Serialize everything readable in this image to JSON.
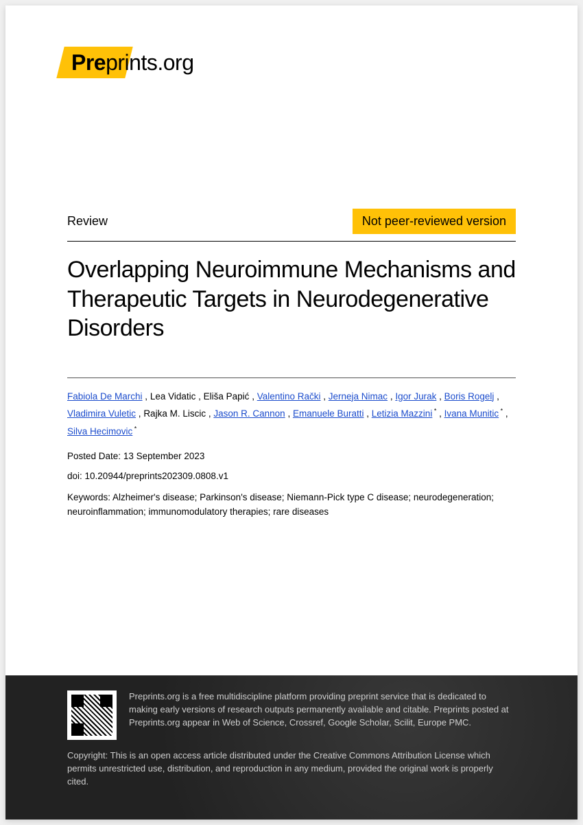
{
  "logo": {
    "pre": "Pre",
    "suffix": "prints.org"
  },
  "header": {
    "doc_type": "Review",
    "badge": "Not peer-reviewed version"
  },
  "title": "Overlapping Neuroimmune Mechanisms and Therapeutic Targets in Neurodegenerative Disorders",
  "authors": [
    {
      "name": "Fabiola De Marchi",
      "link": true,
      "star": false
    },
    {
      "name": "Lea Vidatic",
      "link": false,
      "star": false
    },
    {
      "name": "Eliša Papić",
      "link": false,
      "star": false
    },
    {
      "name": "Valentino Rački",
      "link": true,
      "star": false
    },
    {
      "name": "Jerneja Nimac",
      "link": true,
      "star": false
    },
    {
      "name": "Igor Jurak",
      "link": true,
      "star": false
    },
    {
      "name": "Boris Rogelj",
      "link": true,
      "star": false
    },
    {
      "name": "Vladimira Vuletic",
      "link": true,
      "star": false
    },
    {
      "name": "Rajka M. Liscic",
      "link": false,
      "star": false
    },
    {
      "name": "Jason R. Cannon",
      "link": true,
      "star": false
    },
    {
      "name": "Emanuele Buratti",
      "link": true,
      "star": false
    },
    {
      "name": "Letizia Mazzini",
      "link": true,
      "star": true
    },
    {
      "name": "Ivana Munitic",
      "link": true,
      "star": true
    },
    {
      "name": "Silva Hecimovic",
      "link": true,
      "star": true
    }
  ],
  "posted_label": "Posted Date: ",
  "posted_date": "13 September 2023",
  "doi_label": "doi: ",
  "doi": "10.20944/preprints202309.0808.v1",
  "keywords_label": "Keywords: ",
  "keywords": "Alzheimer's disease; Parkinson's disease; Niemann-Pick type C disease; neurodegeneration; neuroinflammation; immunomodulatory therapies; rare diseases",
  "footer": {
    "description": "Preprints.org is a free multidiscipline platform providing preprint service that is dedicated to making early versions of research outputs permanently available and citable. Preprints posted at Preprints.org appear in Web of Science, Crossref, Google Scholar, Scilit, Europe PMC.",
    "copyright": "Copyright: This is an open access article distributed under the Creative Commons Attribution License which permits unrestricted use, distribution, and reproduction in any medium, provided the original work is properly cited."
  },
  "colors": {
    "accent": "#ffc107",
    "link": "#1a4bcc",
    "footer_bg": "#2a2a2a",
    "footer_text": "#cfcfcf"
  }
}
